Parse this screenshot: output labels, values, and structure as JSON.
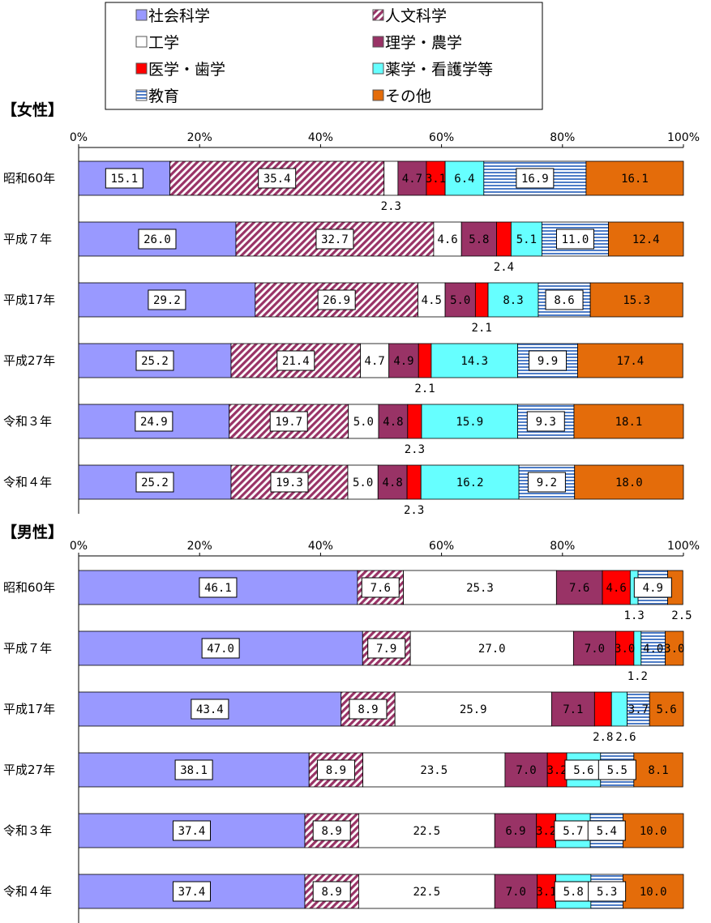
{
  "legend": [
    {
      "key": "social",
      "name": "社会科学",
      "color": "#9999ff",
      "pattern": "solid"
    },
    {
      "key": "humanities",
      "name": "人文科学",
      "color": "#993366",
      "pattern": "diag"
    },
    {
      "key": "engineering",
      "name": "工学",
      "color": "#ffffff",
      "pattern": "solid"
    },
    {
      "key": "science_agri",
      "name": "理学・農学",
      "color": "#993366",
      "pattern": "solid"
    },
    {
      "key": "medicine",
      "name": "医学・歯学",
      "color": "#ff0000",
      "pattern": "solid"
    },
    {
      "key": "pharma",
      "name": "薬学・看護学等",
      "color": "#66ffff",
      "pattern": "solid"
    },
    {
      "key": "education",
      "name": "教育",
      "color": "#4d7cc7",
      "pattern": "hstripe"
    },
    {
      "key": "other",
      "name": "その他",
      "color": "#e46c0a",
      "pattern": "solid"
    }
  ],
  "chart_data": [
    {
      "type": "bar",
      "orientation": "horizontal",
      "stacked": true,
      "title": "【女性】",
      "xlim": [
        0,
        100
      ],
      "xticks": [
        "0%",
        "20%",
        "40%",
        "60%",
        "80%",
        "100%"
      ],
      "categories": [
        "昭和60年",
        "平成７年",
        "平成17年",
        "平成27年",
        "令和３年",
        "令和４年"
      ],
      "series": [
        {
          "name": "社会科学",
          "values": [
            15.1,
            26.0,
            29.2,
            25.2,
            24.9,
            25.2
          ],
          "labels": [
            "15.1",
            "26.0",
            "29.2",
            "25.2",
            "24.9",
            "25.2"
          ]
        },
        {
          "name": "人文科学",
          "values": [
            35.4,
            32.7,
            26.9,
            21.4,
            19.7,
            19.3
          ],
          "labels": [
            "35.4",
            "32.7",
            "26.9",
            "21.4",
            "19.7",
            "19.3"
          ]
        },
        {
          "name": "工学",
          "values": [
            2.3,
            4.6,
            4.5,
            4.7,
            5.0,
            5.0
          ],
          "labels": [
            "2.3",
            "4.6",
            "4.5",
            "4.7",
            "5.0",
            "5.0"
          ]
        },
        {
          "name": "理学・農学",
          "values": [
            4.7,
            5.8,
            5.0,
            4.9,
            4.8,
            4.8
          ],
          "labels": [
            "4.7",
            "5.8",
            "5.0",
            "4.9",
            "4.8",
            "4.8"
          ]
        },
        {
          "name": "医学・歯学",
          "values": [
            3.1,
            2.4,
            2.1,
            2.1,
            2.3,
            2.3
          ],
          "labels": [
            "3.1",
            "2.4",
            "2.1",
            "2.1",
            "2.3",
            "2.3"
          ]
        },
        {
          "name": "薬学・看護学等",
          "values": [
            6.4,
            5.1,
            8.3,
            14.3,
            15.9,
            16.2
          ],
          "labels": [
            "6.4",
            "5.1",
            "8.3",
            "14.3",
            "15.9",
            "16.2"
          ]
        },
        {
          "name": "教育",
          "values": [
            16.9,
            11.0,
            8.6,
            9.9,
            9.3,
            9.2
          ],
          "labels": [
            "16.9",
            "11.0",
            "8.6",
            "9.9",
            "9.3",
            "9.2"
          ]
        },
        {
          "name": "その他",
          "values": [
            16.1,
            12.4,
            15.3,
            17.4,
            18.1,
            18.0
          ],
          "labels": [
            "16.1",
            "12.4",
            "15.3",
            "17.4",
            "18.1",
            "18.0"
          ]
        }
      ]
    },
    {
      "type": "bar",
      "orientation": "horizontal",
      "stacked": true,
      "title": "【男性】",
      "xlim": [
        0,
        100
      ],
      "xticks": [
        "0%",
        "20%",
        "40%",
        "60%",
        "80%",
        "100%"
      ],
      "categories": [
        "昭和60年",
        "平成７年",
        "平成17年",
        "平成27年",
        "令和３年",
        "令和４年"
      ],
      "series": [
        {
          "name": "社会科学",
          "values": [
            46.1,
            47.0,
            43.4,
            38.1,
            37.4,
            37.4
          ],
          "labels": [
            "46.1",
            "47.0",
            "43.4",
            "38.1",
            "37.4",
            "37.4"
          ]
        },
        {
          "name": "人文科学",
          "values": [
            7.6,
            7.9,
            8.9,
            8.9,
            8.9,
            8.9
          ],
          "labels": [
            "7.6",
            "7.9",
            "8.9",
            "8.9",
            "8.9",
            "8.9"
          ]
        },
        {
          "name": "工学",
          "values": [
            25.3,
            27.0,
            25.9,
            23.5,
            22.5,
            22.5
          ],
          "labels": [
            "25.3",
            "27.0",
            "25.9",
            "23.5",
            "22.5",
            "22.5"
          ]
        },
        {
          "name": "理学・農学",
          "values": [
            7.6,
            7.0,
            7.1,
            7.0,
            6.9,
            7.0
          ],
          "labels": [
            "7.6",
            "7.0",
            "7.1",
            "7.0",
            "6.9",
            "7.0"
          ]
        },
        {
          "name": "医学・歯学",
          "values": [
            4.6,
            3.0,
            2.8,
            3.2,
            3.2,
            3.1
          ],
          "labels": [
            "4.6",
            "3.0",
            "2.8",
            "3.2",
            "3.2",
            "3.1"
          ]
        },
        {
          "name": "薬学・看護学等",
          "values": [
            1.3,
            1.2,
            2.6,
            5.6,
            5.7,
            5.8
          ],
          "labels": [
            "1.3",
            "1.2",
            "2.6",
            "5.6",
            "5.7",
            "5.8"
          ]
        },
        {
          "name": "教育",
          "values": [
            4.9,
            4.0,
            3.7,
            5.5,
            5.4,
            5.3
          ],
          "labels": [
            "4.9",
            "4.0",
            "3.7",
            "5.5",
            "5.4",
            "5.3"
          ]
        },
        {
          "name": "その他",
          "values": [
            2.5,
            3.0,
            5.6,
            8.1,
            10.0,
            10.0
          ],
          "labels": [
            "2.5",
            "3.0",
            "5.6",
            "8.1",
            "10.0",
            "10.0"
          ]
        }
      ]
    }
  ]
}
